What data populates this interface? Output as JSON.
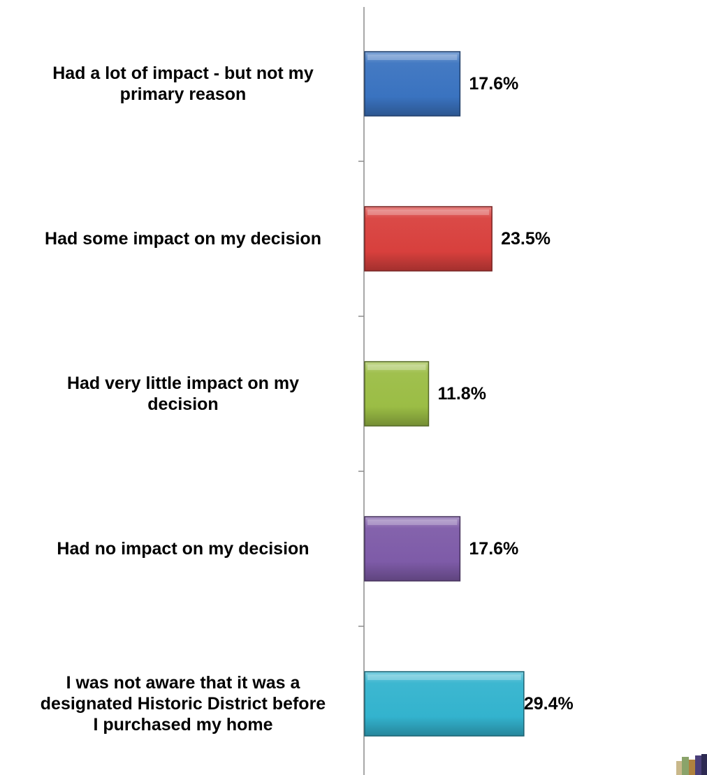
{
  "chart_data": {
    "type": "bar",
    "orientation": "horizontal",
    "categories": [
      "Had a lot of impact - but not my\nprimary reason",
      "Had some impact on my decision",
      "Had very little impact on my\ndecision",
      "Had no impact on my decision",
      "I was not aware that it was a\ndesignated Historic District before\nI purchased my home"
    ],
    "values": [
      17.6,
      23.5,
      11.8,
      17.6,
      29.4
    ],
    "value_labels": [
      "17.6%",
      "23.5%",
      "11.8%",
      "17.6%",
      "29.4%"
    ],
    "colors": [
      "#3a73c0",
      "#d8403d",
      "#9bbd45",
      "#7e5ba8",
      "#33b3ce"
    ],
    "title": "",
    "xlabel": "",
    "ylabel": "",
    "xlim": [
      0,
      35
    ],
    "grid": false,
    "legend": "none"
  }
}
